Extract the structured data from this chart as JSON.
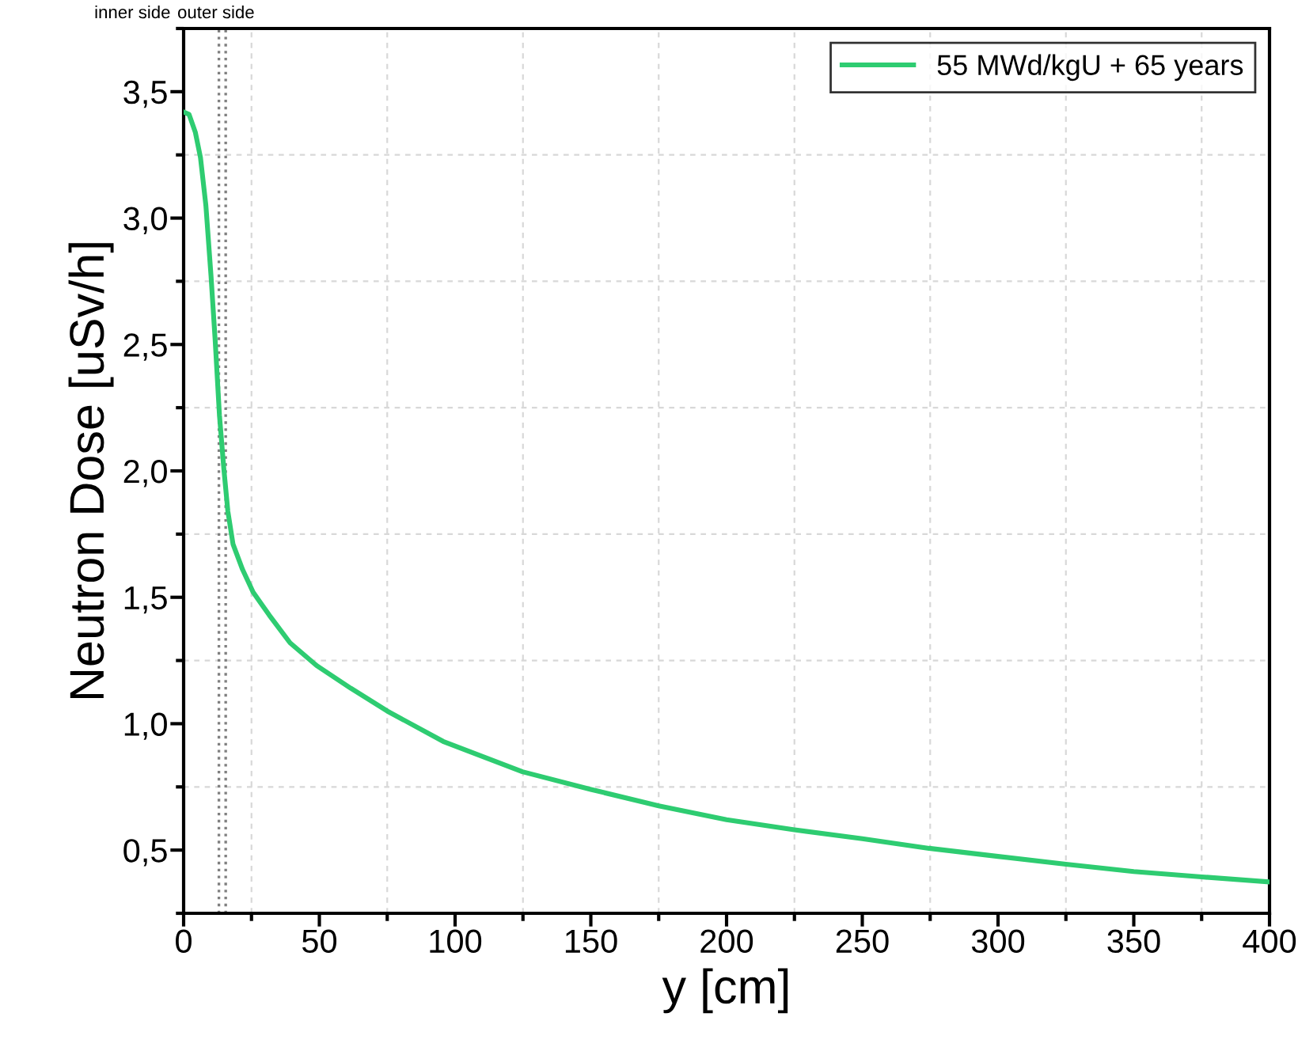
{
  "chart_data": {
    "type": "line",
    "xlabel": "y [cm]",
    "ylabel": "Neutron Dose [uSv/h]",
    "x": [
      0,
      2,
      4.3,
      6.2,
      8.2,
      10.1,
      11.6,
      13.2,
      14.8,
      16.3,
      18.2,
      21.7,
      25.6,
      31.5,
      39.2,
      49,
      61.6,
      75,
      95.6,
      124.8,
      150,
      175,
      200,
      225,
      250,
      274.6,
      300,
      325,
      350,
      375,
      400
    ],
    "series": [
      {
        "name": "55 MWd/kgU + 65 years",
        "color": "#2ecc71",
        "values": [
          3.42,
          3.41,
          3.34,
          3.24,
          3.05,
          2.77,
          2.52,
          2.22,
          2.01,
          1.84,
          1.71,
          1.61,
          1.52,
          1.43,
          1.32,
          1.23,
          1.14,
          1.05,
          0.93,
          0.81,
          0.74,
          0.675,
          0.62,
          0.58,
          0.545,
          0.507,
          0.475,
          0.444,
          0.415,
          0.394,
          0.374
        ]
      }
    ],
    "xlim": [
      0,
      400
    ],
    "ylim": [
      0.25,
      3.75
    ],
    "xticks": [
      0,
      {
        "value": 25,
        "label": null
      },
      50,
      {
        "value": 75,
        "label": null
      },
      100,
      {
        "value": 125,
        "label": null
      },
      150,
      {
        "value": 175,
        "label": null
      },
      200,
      {
        "value": 225,
        "label": null
      },
      250,
      {
        "value": 275,
        "label": null
      },
      300,
      {
        "value": 325,
        "label": null
      },
      350,
      {
        "value": 375,
        "label": null
      },
      400
    ],
    "yticks": [
      {
        "value": 0.25,
        "label": null
      },
      {
        "value": 0.5,
        "label": "0,5"
      },
      {
        "value": 0.75,
        "label": null
      },
      {
        "value": 1.0,
        "label": "1,0"
      },
      {
        "value": 1.25,
        "label": null
      },
      {
        "value": 1.5,
        "label": "1,5"
      },
      {
        "value": 1.75,
        "label": null
      },
      {
        "value": 2.0,
        "label": "2,0"
      },
      {
        "value": 2.25,
        "label": null
      },
      {
        "value": 2.5,
        "label": "2,5"
      },
      {
        "value": 2.75,
        "label": null
      },
      {
        "value": 3.0,
        "label": "3,0"
      },
      {
        "value": 3.25,
        "label": null
      },
      {
        "value": 3.5,
        "label": "3,5"
      },
      {
        "value": 3.75,
        "label": null
      }
    ],
    "ref_lines": [
      {
        "axis": "x",
        "value": 13,
        "label": "inner side",
        "color": "#808080",
        "line_style": "dotted"
      },
      {
        "axis": "x",
        "value": 15.5,
        "label": "outer side",
        "color": "#808080",
        "line_style": "dotted"
      }
    ],
    "grid": true,
    "legend": "top right",
    "marker": "none",
    "line_style": "solid"
  }
}
